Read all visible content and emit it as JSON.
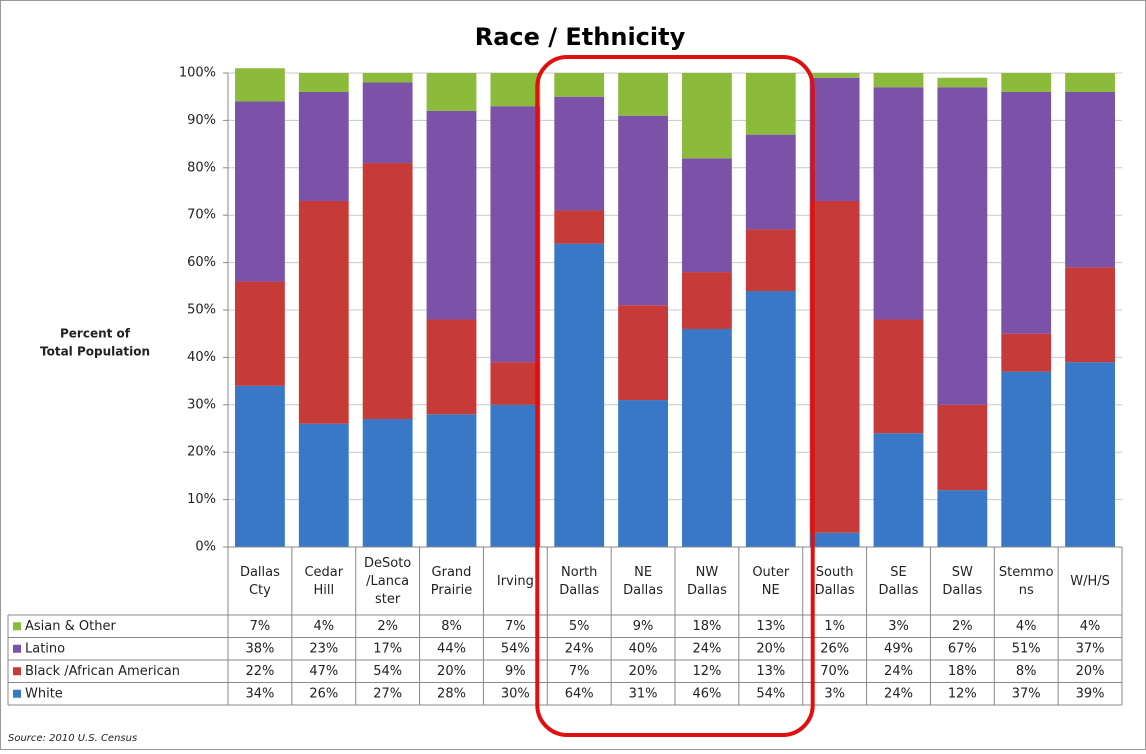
{
  "chart_data": {
    "type": "stacked_bar",
    "title": "Race / Ethnicity",
    "ylabel": [
      "Percent of",
      "Total Population"
    ],
    "source": "Source: 2010 U.S. Census",
    "categories": [
      "Dallas Cty",
      "Cedar Hill",
      "DeSoto /Lancaster",
      "Grand Prairie",
      "Irving",
      "North Dallas",
      "NE Dallas",
      "NW Dallas",
      "Outer NE",
      "South Dallas",
      "SE Dallas",
      "SW Dallas",
      "Stemmons",
      "W/H/S"
    ],
    "series": [
      {
        "name": "Asian & Other",
        "color": "#8cbb3c",
        "values": [
          7,
          4,
          2,
          8,
          7,
          5,
          9,
          18,
          13,
          1,
          3,
          2,
          4,
          4
        ],
        "value_labels": [
          "7%",
          "4%",
          "2%",
          "8%",
          "7%",
          "5%",
          "9%",
          "18%",
          "13%",
          "1%",
          "3%",
          "2%",
          "4%",
          "4%"
        ]
      },
      {
        "name": "Latino",
        "color": "#7b52a8",
        "values": [
          38,
          23,
          17,
          44,
          54,
          24,
          40,
          24,
          20,
          26,
          49,
          67,
          51,
          37
        ],
        "value_labels": [
          "38%",
          "23%",
          "17%",
          "44%",
          "54%",
          "24%",
          "40%",
          "24%",
          "20%",
          "26%",
          "49%",
          "67%",
          "51%",
          "37%"
        ]
      },
      {
        "name": "Black /African American",
        "color": "#c63a38",
        "values": [
          22,
          47,
          54,
          20,
          9,
          7,
          20,
          12,
          13,
          70,
          24,
          18,
          8,
          20
        ],
        "value_labels": [
          "22%",
          "47%",
          "54%",
          "20%",
          "9%",
          "7%",
          "20%",
          "12%",
          "13%",
          "70%",
          "24%",
          "18%",
          "8%",
          "20%"
        ]
      },
      {
        "name": "White",
        "color": "#3878c6",
        "values": [
          34,
          26,
          27,
          28,
          30,
          64,
          31,
          46,
          54,
          3,
          24,
          12,
          37,
          39
        ],
        "value_labels": [
          "34%",
          "26%",
          "27%",
          "28%",
          "30%",
          "64%",
          "31%",
          "46%",
          "54%",
          "3%",
          "24%",
          "12%",
          "37%",
          "39%"
        ]
      }
    ],
    "stack_order": "bottom_up_reverse",
    "ylim": [
      0,
      100
    ],
    "yticks": [
      {
        "value": 0,
        "label": "0%"
      },
      {
        "value": 10,
        "label": "10%"
      },
      {
        "value": 20,
        "label": "20%"
      },
      {
        "value": 30,
        "label": "30%"
      },
      {
        "value": 40,
        "label": "40%"
      },
      {
        "value": 50,
        "label": "50%"
      },
      {
        "value": 60,
        "label": "60%"
      },
      {
        "value": 70,
        "label": "70%"
      },
      {
        "value": 80,
        "label": "80%"
      },
      {
        "value": 90,
        "label": "90%"
      },
      {
        "value": 100,
        "label": "100%"
      }
    ],
    "grid": true
  }
}
